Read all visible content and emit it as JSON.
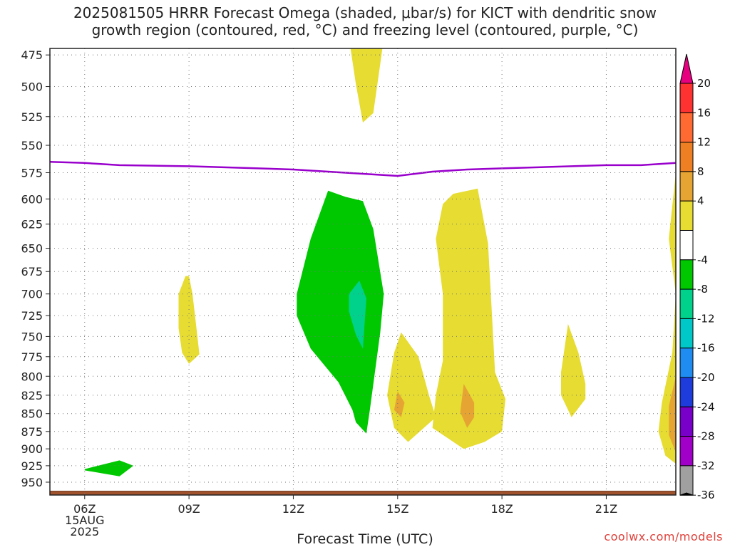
{
  "title_line1": "2025081505 HRRR Forecast Omega (shaded, μbar/s) for KICT with dendritic snow",
  "title_line2": "growth region (contoured, red, °C) and freezing level (contoured, purple, °C)",
  "credit": "coolwx.com/models",
  "chart_data": {
    "type": "time-height contour",
    "title": "2025081505 HRRR Forecast Omega (shaded, μbar/s) for KICT with dendritic snow growth region (contoured, red, °C) and freezing level (contoured, purple, °C)",
    "xlabel": "Forecast Time (UTC)",
    "ylabel": "",
    "x_ticks": [
      "06Z",
      "09Z",
      "12Z",
      "15Z",
      "18Z",
      "21Z"
    ],
    "x_tick_hours": [
      6,
      9,
      12,
      15,
      18,
      21
    ],
    "x_date_label": [
      "15AUG",
      "2025"
    ],
    "xlim_hours_utc": [
      5,
      23
    ],
    "y_ticks": [
      475,
      500,
      525,
      550,
      575,
      600,
      625,
      650,
      675,
      700,
      725,
      750,
      775,
      800,
      825,
      850,
      875,
      900,
      925,
      950
    ],
    "ylim_hPa": [
      470,
      970
    ],
    "y_scale": "log-pressure",
    "grid": true,
    "freezing_level": {
      "color": "#9900cc",
      "hours": [
        5,
        6,
        7,
        9,
        11,
        12,
        13,
        14,
        14.5,
        15,
        15.5,
        16,
        17,
        18,
        20,
        21,
        22,
        23
      ],
      "pressure_hPa": [
        565,
        566,
        568,
        569,
        571,
        572,
        574,
        576,
        577,
        578,
        576,
        574,
        572,
        571,
        569,
        568,
        568,
        566
      ]
    },
    "shaded_regions": [
      {
        "level": "-8 to -4",
        "color": "#00c800",
        "points": [
          [
            6.0,
            930
          ],
          [
            7.0,
            917
          ],
          [
            7.4,
            925
          ],
          [
            7.0,
            941
          ],
          [
            6.0,
            932
          ]
        ]
      },
      {
        "level": "4 to 8",
        "color": "#e6dc32",
        "points": [
          [
            8.9,
            680
          ],
          [
            8.7,
            700
          ],
          [
            8.7,
            740
          ],
          [
            8.8,
            770
          ],
          [
            9.0,
            784
          ],
          [
            9.3,
            772
          ],
          [
            9.2,
            735
          ],
          [
            9.1,
            700
          ],
          [
            9.0,
            680
          ]
        ]
      },
      {
        "level": "4 to 8",
        "color": "#e6dc32",
        "points": [
          [
            13.6,
            462
          ],
          [
            13.8,
            498
          ],
          [
            14.0,
            530
          ],
          [
            14.3,
            522
          ],
          [
            14.5,
            482
          ],
          [
            14.6,
            462
          ]
        ]
      },
      {
        "level": "-8 to -4",
        "color": "#00c800",
        "points": [
          [
            13.0,
            592
          ],
          [
            12.5,
            640
          ],
          [
            12.1,
            700
          ],
          [
            12.1,
            725
          ],
          [
            12.5,
            765
          ],
          [
            13.3,
            808
          ],
          [
            13.7,
            845
          ],
          [
            13.8,
            862
          ],
          [
            14.1,
            878
          ],
          [
            14.2,
            845
          ],
          [
            14.5,
            745
          ],
          [
            14.6,
            700
          ],
          [
            14.3,
            630
          ],
          [
            14.0,
            602
          ],
          [
            13.5,
            598
          ],
          [
            13.0,
            592
          ]
        ]
      },
      {
        "level": "-12 to -8",
        "color": "#00d28c",
        "points": [
          [
            13.6,
            700
          ],
          [
            13.9,
            685
          ],
          [
            14.1,
            705
          ],
          [
            14.0,
            765
          ],
          [
            13.8,
            748
          ],
          [
            13.6,
            720
          ],
          [
            13.6,
            700
          ]
        ]
      },
      {
        "level": "4 to 8",
        "color": "#e6dc32",
        "points": [
          [
            15.1,
            745
          ],
          [
            15.6,
            775
          ],
          [
            15.9,
            825
          ],
          [
            16.1,
            855
          ],
          [
            15.3,
            890
          ],
          [
            14.9,
            870
          ],
          [
            14.7,
            825
          ],
          [
            14.9,
            770
          ],
          [
            15.1,
            745
          ]
        ]
      },
      {
        "level": "4 to 8",
        "color": "#e6dc32",
        "points": [
          [
            16.6,
            595
          ],
          [
            17.3,
            590
          ],
          [
            17.6,
            645
          ],
          [
            17.7,
            715
          ],
          [
            17.8,
            795
          ],
          [
            18.1,
            830
          ],
          [
            18.0,
            875
          ],
          [
            17.5,
            890
          ],
          [
            16.9,
            900
          ],
          [
            16.0,
            870
          ],
          [
            16.1,
            825
          ],
          [
            16.3,
            780
          ],
          [
            16.3,
            700
          ],
          [
            16.1,
            640
          ],
          [
            16.3,
            605
          ],
          [
            16.6,
            595
          ]
        ]
      },
      {
        "level": "8 to 12",
        "color": "#e6a532",
        "points": [
          [
            15.0,
            820
          ],
          [
            15.2,
            835
          ],
          [
            15.1,
            855
          ],
          [
            14.9,
            845
          ],
          [
            15.0,
            820
          ]
        ]
      },
      {
        "level": "8 to 12",
        "color": "#e6a532",
        "points": [
          [
            16.9,
            810
          ],
          [
            17.2,
            835
          ],
          [
            17.2,
            855
          ],
          [
            17.0,
            870
          ],
          [
            16.8,
            848
          ],
          [
            16.9,
            810
          ]
        ]
      },
      {
        "level": "4 to 8",
        "color": "#e6dc32",
        "points": [
          [
            19.9,
            735
          ],
          [
            20.2,
            770
          ],
          [
            20.4,
            810
          ],
          [
            20.4,
            830
          ],
          [
            20.0,
            855
          ],
          [
            19.7,
            825
          ],
          [
            19.7,
            795
          ],
          [
            19.9,
            735
          ]
        ]
      },
      {
        "level": "4 to 8",
        "color": "#e6dc32",
        "points": [
          [
            23.0,
            575
          ],
          [
            22.8,
            640
          ],
          [
            23.0,
            700
          ],
          [
            22.9,
            770
          ],
          [
            22.6,
            835
          ],
          [
            22.5,
            875
          ],
          [
            22.7,
            910
          ],
          [
            23.0,
            922
          ]
        ]
      },
      {
        "level": "8 to 12",
        "color": "#e6a532",
        "points": [
          [
            23.0,
            800
          ],
          [
            22.8,
            840
          ],
          [
            22.8,
            880
          ],
          [
            23.0,
            905
          ]
        ]
      }
    ],
    "terrain": {
      "color": "#a0522d",
      "pressure_hPa": 964
    },
    "colorbar": {
      "labels": [
        "20",
        "16",
        "12",
        "8",
        "4",
        "-4",
        "-8",
        "-12",
        "-16",
        "-20",
        "-24",
        "-28",
        "-32",
        "-36"
      ],
      "colors_top_to_bottom": [
        "#e6007f",
        "#ff3232",
        "#ff6a32",
        "#ee7f22",
        "#e6a532",
        "#e6dc32",
        "#ffffff",
        "#00c800",
        "#00d28c",
        "#00c8c8",
        "#1e8cf0",
        "#1e3cdc",
        "#7800c8",
        "#a000c8",
        "#a0a0a0",
        "#000000"
      ]
    }
  }
}
